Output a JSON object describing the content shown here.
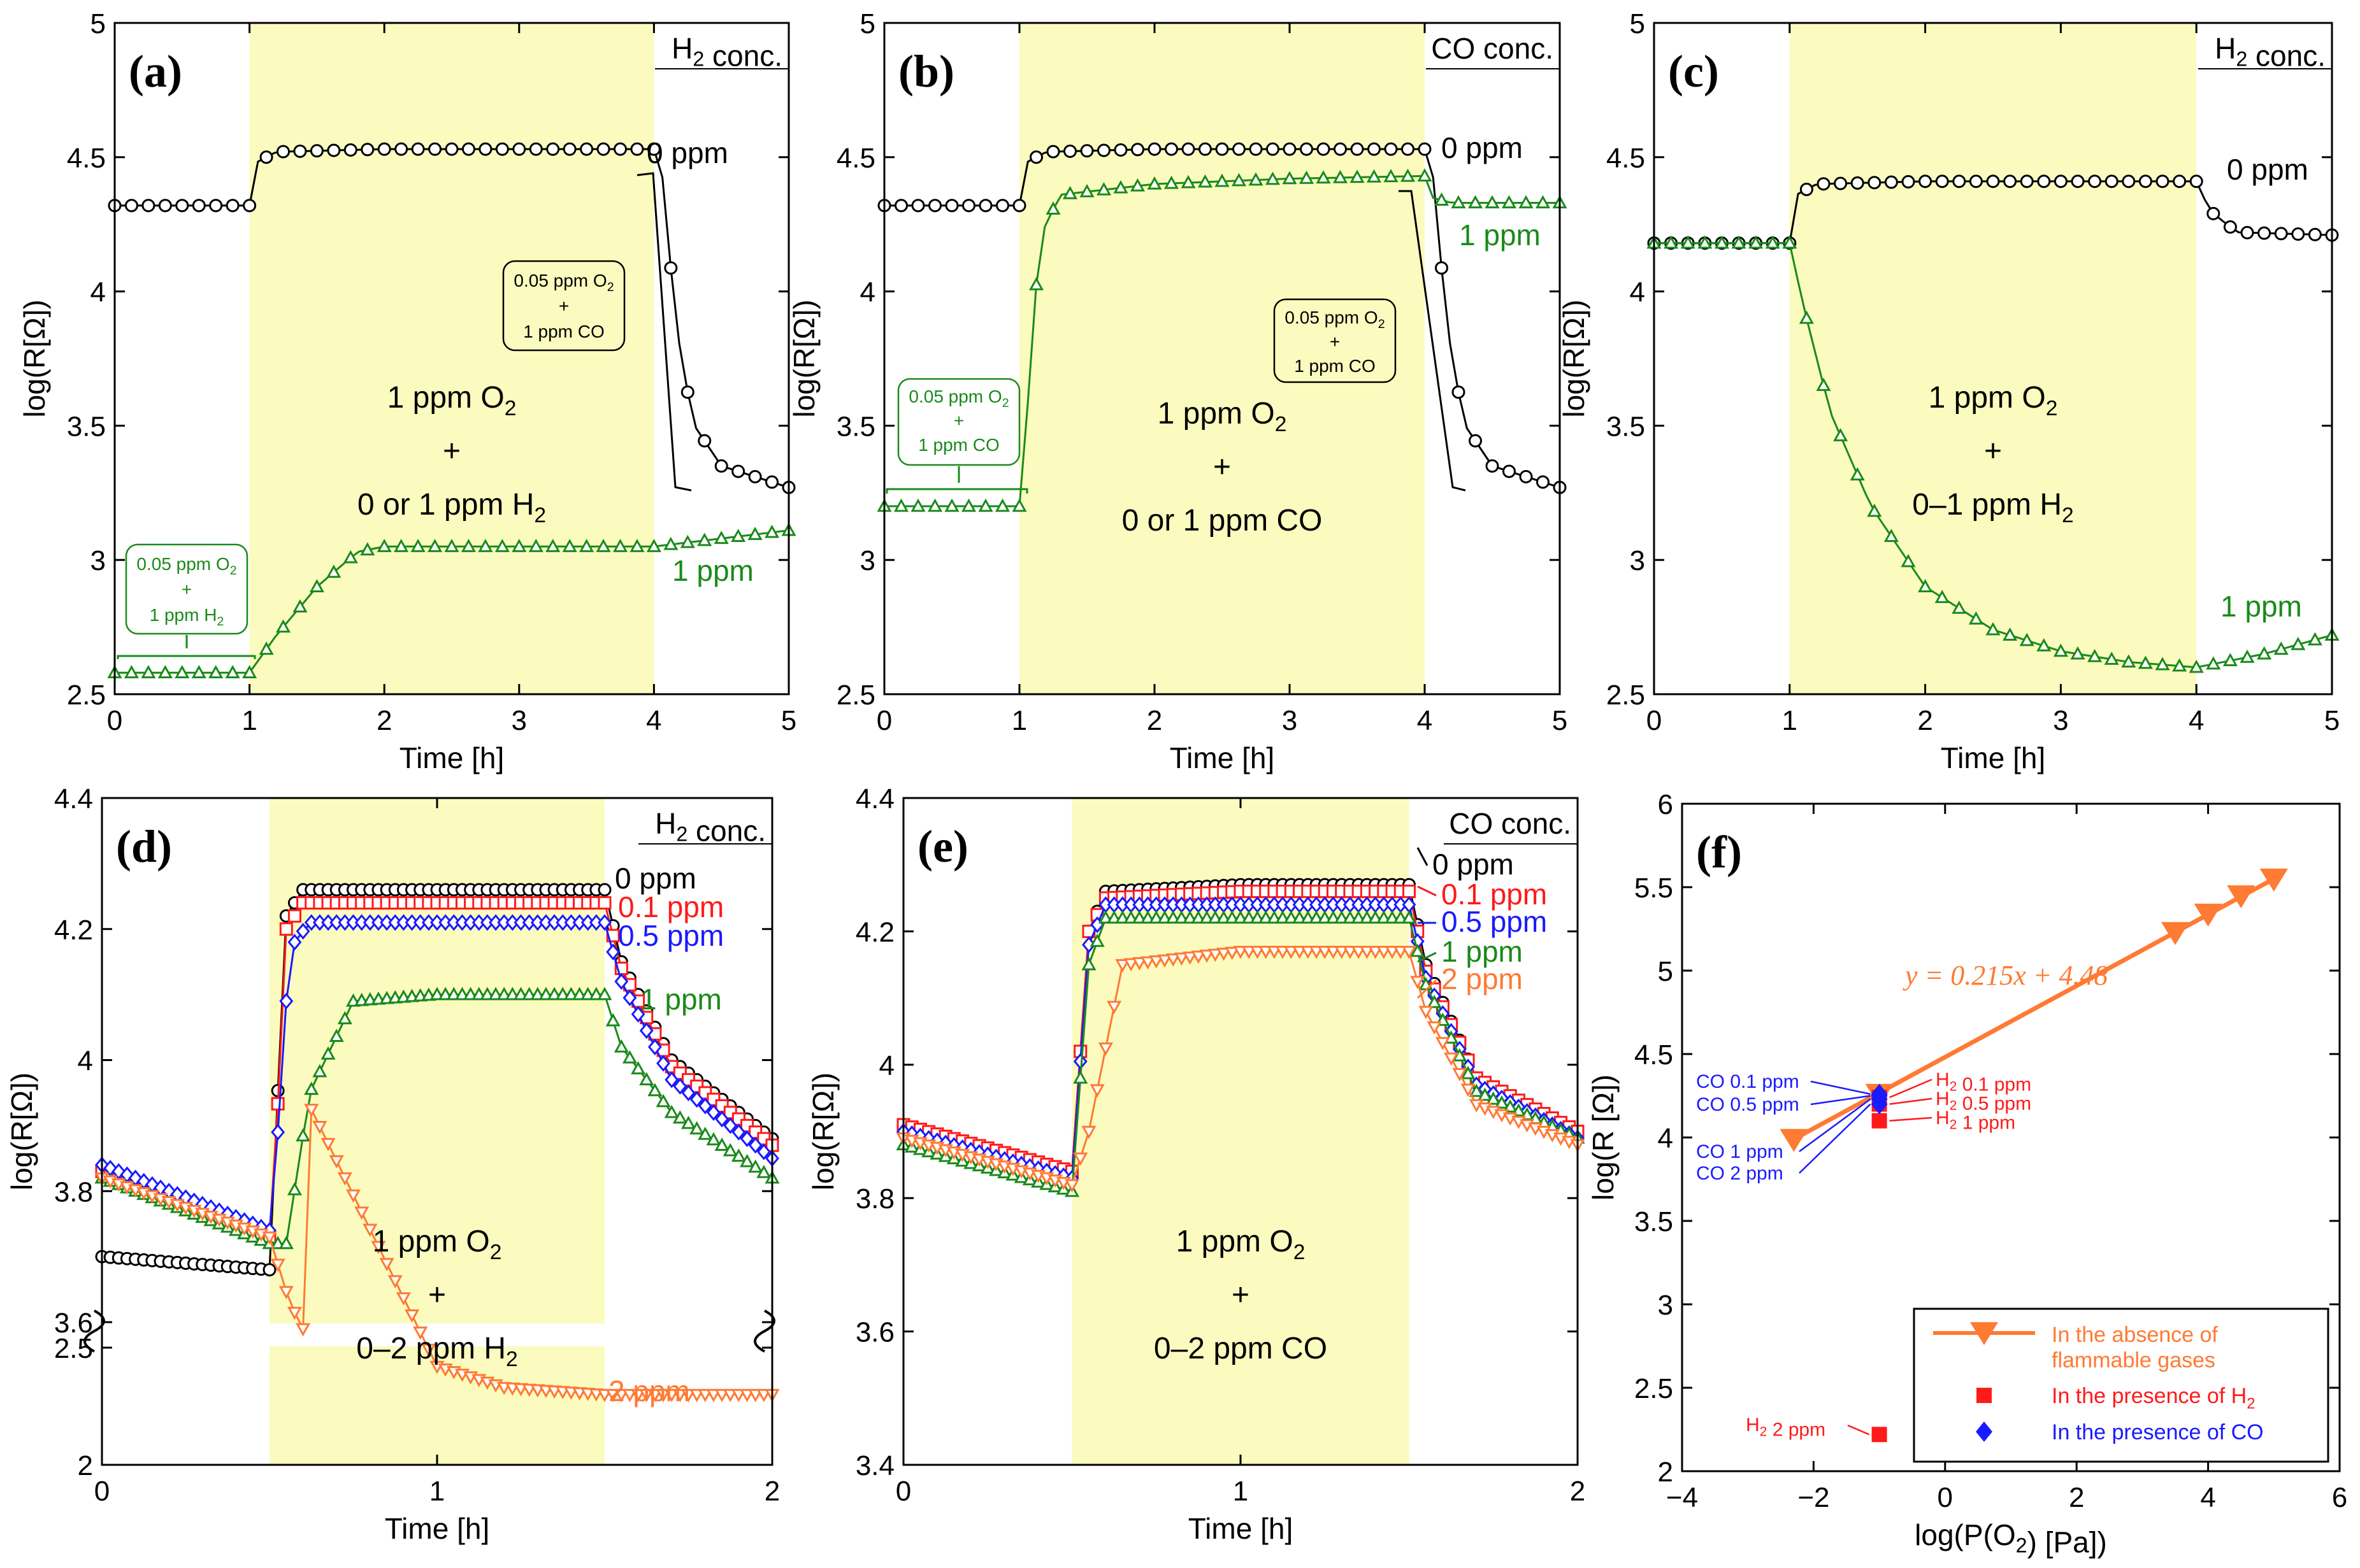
{
  "figure": {
    "colors": {
      "shade": "#fbfbbf",
      "black": "#000000",
      "green": "#1a8a1a",
      "red": "#ff1a1a",
      "blue": "#1a1aff",
      "orange": "#ff7a33"
    }
  },
  "chart_data": [
    {
      "panel_label": "(a)",
      "type": "line",
      "xlabel": "Time [h]",
      "ylabel": "log(R[Ω])",
      "xlim": [
        0,
        5
      ],
      "ylim": [
        2.5,
        5
      ],
      "xticks": [
        "0",
        "1",
        "2",
        "3",
        "4",
        "5"
      ],
      "yticks": [
        "2.5",
        "3",
        "3.5",
        "4",
        "4.5",
        "5"
      ],
      "shaded_region": [
        1,
        4
      ],
      "conc_header": "H2 conc.",
      "center_text": [
        "1 ppm O2",
        "+",
        "0 or 1 ppm H2"
      ],
      "series": [
        {
          "name": "0 ppm",
          "color": "#000000",
          "marker": "circle",
          "x": [
            0,
            1,
            1.05,
            1.2,
            2,
            3,
            4,
            4.05,
            4.1,
            4.2,
            4.3,
            4.5,
            5
          ],
          "y": [
            4.32,
            4.32,
            4.48,
            4.52,
            4.53,
            4.53,
            4.53,
            4.5,
            4.2,
            3.75,
            3.5,
            3.35,
            3.27
          ]
        },
        {
          "name": "1 ppm",
          "color": "#1a8a1a",
          "marker": "triangle-up",
          "x": [
            0,
            1,
            1.2,
            1.5,
            1.8,
            2,
            3,
            4,
            4.5,
            5
          ],
          "y": [
            2.58,
            2.58,
            2.72,
            2.9,
            3.03,
            3.05,
            3.05,
            3.05,
            3.08,
            3.11
          ]
        }
      ],
      "annotations": [
        {
          "lines": [
            "0.05 ppm O2",
            "+",
            "1 ppm CO"
          ],
          "color": "#000000"
        },
        {
          "lines": [
            "0.05 ppm O2",
            "+",
            "1 ppm H2"
          ],
          "color": "#1a8a1a"
        }
      ]
    },
    {
      "panel_label": "(b)",
      "type": "line",
      "xlabel": "Time [h]",
      "ylabel": "log(R[Ω])",
      "xlim": [
        0,
        5
      ],
      "ylim": [
        2.5,
        5
      ],
      "xticks": [
        "0",
        "1",
        "2",
        "3",
        "4",
        "5"
      ],
      "yticks": [
        "2.5",
        "3",
        "3.5",
        "4",
        "4.5",
        "5"
      ],
      "shaded_region": [
        1,
        4
      ],
      "conc_header": "CO conc.",
      "center_text": [
        "1 ppm O2",
        "+",
        "0 or 1 ppm CO"
      ],
      "series": [
        {
          "name": "0 ppm",
          "color": "#000000",
          "marker": "circle",
          "x": [
            0,
            1,
            1.05,
            1.2,
            2,
            3,
            4,
            4.05,
            4.1,
            4.2,
            4.3,
            4.5,
            5
          ],
          "y": [
            4.32,
            4.32,
            4.48,
            4.52,
            4.53,
            4.53,
            4.53,
            4.5,
            4.2,
            3.75,
            3.5,
            3.35,
            3.27
          ]
        },
        {
          "name": "1 ppm",
          "color": "#1a8a1a",
          "marker": "triangle-up",
          "x": [
            0,
            1,
            1.05,
            1.15,
            1.3,
            2,
            3,
            4,
            4.05,
            4.2,
            5
          ],
          "y": [
            3.2,
            3.2,
            3.5,
            4.2,
            4.36,
            4.4,
            4.42,
            4.43,
            4.35,
            4.33,
            4.33
          ]
        }
      ],
      "annotations": [
        {
          "lines": [
            "0.05 ppm O2",
            "+",
            "1 ppm CO"
          ],
          "color": "#000000"
        },
        {
          "lines": [
            "0.05 ppm O2",
            "+",
            "1 ppm CO"
          ],
          "color": "#1a8a1a"
        }
      ]
    },
    {
      "panel_label": "(c)",
      "type": "line",
      "xlabel": "Time [h]",
      "ylabel": "log(R[Ω])",
      "xlim": [
        0,
        5
      ],
      "ylim": [
        2.5,
        5
      ],
      "xticks": [
        "0",
        "1",
        "2",
        "3",
        "4",
        "5"
      ],
      "yticks": [
        "2.5",
        "3",
        "3.5",
        "4",
        "4.5",
        "5"
      ],
      "shaded_region": [
        1,
        4
      ],
      "conc_header": "H2 conc.",
      "center_text": [
        "1 ppm O2",
        "+",
        "0–1 ppm H2"
      ],
      "series": [
        {
          "name": "0 ppm",
          "color": "#000000",
          "marker": "circle",
          "x": [
            0,
            1,
            1.05,
            1.2,
            2,
            3,
            4,
            4.1,
            4.3,
            5
          ],
          "y": [
            4.18,
            4.18,
            4.36,
            4.4,
            4.41,
            4.41,
            4.41,
            4.3,
            4.22,
            4.21
          ]
        },
        {
          "name": "1 ppm",
          "color": "#1a8a1a",
          "marker": "triangle-up",
          "x": [
            0,
            1,
            1.1,
            1.3,
            1.6,
            2,
            2.5,
            3,
            3.5,
            4,
            4.5,
            5
          ],
          "y": [
            4.18,
            4.18,
            3.95,
            3.55,
            3.2,
            2.9,
            2.74,
            2.66,
            2.62,
            2.6,
            2.65,
            2.72
          ]
        }
      ]
    },
    {
      "panel_label": "(d)",
      "type": "line",
      "xlabel": "Time [h]",
      "ylabel": "log(R[Ω])",
      "xlim": [
        0,
        2
      ],
      "ylim_upper": [
        3.6,
        4.4
      ],
      "ylim_lower": [
        2,
        2.5
      ],
      "xticks": [
        "0",
        "1",
        "2"
      ],
      "yticks": [
        "2",
        "2.5",
        "3.6",
        "3.8",
        "4",
        "4.2",
        "4.4"
      ],
      "shaded_region": [
        0.5,
        1.5
      ],
      "conc_header": "H2 conc.",
      "center_text": [
        "1 ppm O2",
        "+",
        "0–2 ppm H2"
      ],
      "series": [
        {
          "name": "0 ppm",
          "color": "#000000",
          "marker": "circle",
          "x": [
            0,
            0.5,
            0.52,
            0.55,
            0.6,
            1,
            1.5,
            1.55,
            1.7,
            2
          ],
          "y": [
            3.7,
            3.68,
            3.9,
            4.22,
            4.26,
            4.26,
            4.26,
            4.15,
            4.0,
            3.88
          ]
        },
        {
          "name": "0.1 ppm",
          "color": "#ff1a1a",
          "marker": "square",
          "x": [
            0,
            0.5,
            0.52,
            0.55,
            0.6,
            1,
            1.5,
            1.55,
            1.7,
            2
          ],
          "y": [
            3.83,
            3.73,
            3.88,
            4.2,
            4.24,
            4.24,
            4.24,
            4.14,
            3.99,
            3.87
          ]
        },
        {
          "name": "0.5 ppm",
          "color": "#1a1aff",
          "marker": "diamond",
          "x": [
            0,
            0.5,
            0.52,
            0.56,
            0.62,
            1,
            1.5,
            1.55,
            1.7,
            2
          ],
          "y": [
            3.84,
            3.74,
            3.85,
            4.17,
            4.21,
            4.21,
            4.21,
            4.12,
            3.97,
            3.85
          ]
        },
        {
          "name": "1 ppm",
          "color": "#1a8a1a",
          "marker": "triangle-up",
          "x": [
            0,
            0.5,
            0.55,
            0.62,
            0.75,
            1,
            1.5,
            1.55,
            1.7,
            2
          ],
          "y": [
            3.82,
            3.72,
            3.72,
            3.95,
            4.09,
            4.1,
            4.1,
            4.02,
            3.92,
            3.82
          ]
        },
        {
          "name": "2 ppm",
          "color": "#ff7a33",
          "marker": "triangle-down",
          "x": [
            0,
            0.5,
            0.53,
            0.56,
            0.6,
            1.0,
            1.2,
            1.5,
            2
          ],
          "y": [
            3.82,
            3.73,
            3.68,
            3.63,
            3.59,
            2.42,
            2.33,
            2.3,
            2.3
          ]
        }
      ],
      "curve_labels": [
        "0 ppm",
        "0.1 ppm",
        "0.5 ppm",
        "1 ppm",
        "2 ppm"
      ]
    },
    {
      "panel_label": "(e)",
      "type": "line",
      "xlabel": "Time [h]",
      "ylabel": "log(R[Ω])",
      "xlim": [
        0,
        2
      ],
      "ylim": [
        3.4,
        4.4
      ],
      "xticks": [
        "0",
        "1",
        "2"
      ],
      "yticks": [
        "3.4",
        "3.6",
        "3.8",
        "4",
        "4.2",
        "4.4"
      ],
      "shaded_region": [
        0.5,
        1.5
      ],
      "conc_header": "CO conc.",
      "center_text": [
        "1 ppm O2",
        "+",
        "0–2 ppm CO"
      ],
      "series": [
        {
          "name": "0 ppm",
          "color": "#000000",
          "marker": "circle",
          "x": [
            0,
            0.5,
            0.55,
            0.6,
            1,
            1.5,
            1.55,
            1.7,
            2
          ],
          "y": [
            3.9,
            3.84,
            4.2,
            4.26,
            4.27,
            4.27,
            4.15,
            3.98,
            3.9
          ]
        },
        {
          "name": "0.1 ppm",
          "color": "#ff1a1a",
          "marker": "square",
          "x": [
            0,
            0.5,
            0.55,
            0.6,
            1,
            1.5,
            1.55,
            1.7,
            2
          ],
          "y": [
            3.91,
            3.84,
            4.2,
            4.25,
            4.26,
            4.26,
            4.14,
            3.98,
            3.9
          ]
        },
        {
          "name": "0.5 ppm",
          "color": "#1a1aff",
          "marker": "diamond",
          "x": [
            0,
            0.5,
            0.55,
            0.6,
            1,
            1.5,
            1.55,
            1.7,
            2
          ],
          "y": [
            3.9,
            3.83,
            4.18,
            4.24,
            4.24,
            4.24,
            4.13,
            3.97,
            3.89
          ]
        },
        {
          "name": "1 ppm",
          "color": "#1a8a1a",
          "marker": "triangle-up",
          "x": [
            0,
            0.5,
            0.55,
            0.6,
            1,
            1.5,
            1.55,
            1.7,
            2
          ],
          "y": [
            3.88,
            3.81,
            4.15,
            4.22,
            4.22,
            4.22,
            4.12,
            3.96,
            3.89
          ]
        },
        {
          "name": "2 ppm",
          "color": "#ff7a33",
          "marker": "triangle-down",
          "x": [
            0,
            0.5,
            0.55,
            0.65,
            1,
            1.5,
            1.55,
            1.7,
            2
          ],
          "y": [
            3.89,
            3.82,
            3.9,
            4.15,
            4.17,
            4.17,
            4.08,
            3.94,
            3.88
          ]
        }
      ],
      "curve_labels": [
        "0 ppm",
        "0.1 ppm",
        "0.5 ppm",
        "1 ppm",
        "2 ppm"
      ]
    },
    {
      "panel_label": "(f)",
      "type": "scatter",
      "xlabel": "log(P(O2) [Pa])",
      "ylabel": "log(R [Ω])",
      "xlim": [
        -4,
        6
      ],
      "ylim": [
        2,
        6
      ],
      "xticks": [
        "−4",
        "−2",
        "0",
        "2",
        "4",
        "6"
      ],
      "yticks": [
        "2",
        "2.5",
        "3",
        "3.5",
        "4",
        "4.5",
        "5",
        "5.5",
        "6"
      ],
      "equation": "y = 0.215x + 4.48",
      "fit_line": {
        "x": [
          -2.3,
          5.0
        ],
        "y": [
          3.99,
          5.55
        ]
      },
      "series": [
        {
          "name": "In the absence of flammable gases",
          "color": "#ff7a33",
          "marker": "triangle-down",
          "x": [
            -2.3,
            -1.0,
            3.5,
            4.0,
            4.5,
            5.0
          ],
          "y": [
            3.99,
            4.26,
            5.23,
            5.34,
            5.45,
            5.55
          ]
        },
        {
          "name": "In the presence of H2",
          "color": "#ff1a1a",
          "marker": "square",
          "x": [
            -1.0,
            -1.0,
            -1.0,
            -1.0
          ],
          "y": [
            4.24,
            4.2,
            4.1,
            2.22
          ]
        },
        {
          "name": "In the presence of CO",
          "color": "#1a1aff",
          "marker": "diamond",
          "x": [
            -1.0,
            -1.0,
            -1.0,
            -1.0
          ],
          "y": [
            4.26,
            4.25,
            4.23,
            4.2
          ]
        }
      ],
      "point_labels": {
        "h2": [
          "H2 0.1 ppm",
          "H2 0.5 ppm",
          "H2 1 ppm",
          "H2 2 ppm"
        ],
        "co": [
          "CO 0.1 ppm",
          "CO 0.5 ppm",
          "CO 1 ppm",
          "CO 2 ppm"
        ]
      },
      "legend": [
        "In the absence of",
        "flammable gases",
        "In the presence of H2",
        "In the presence of CO"
      ]
    }
  ]
}
